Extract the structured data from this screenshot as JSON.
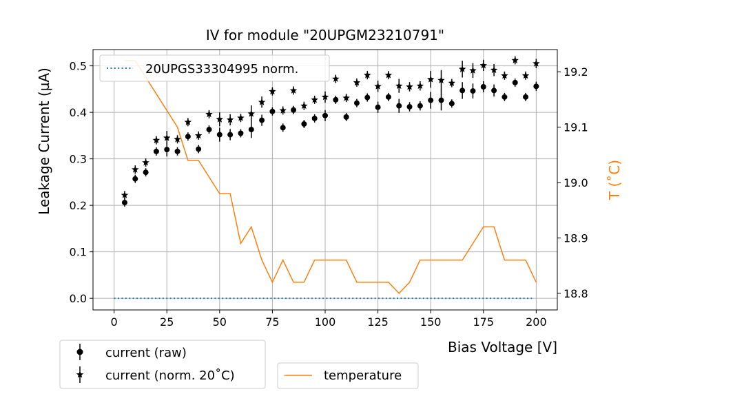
{
  "chart_data": {
    "type": "scatter",
    "title": "IV for module \"20UPGM23210791\"",
    "xlabel": "Bias Voltage [V]",
    "ylabel": "Leakage Current (µA)",
    "y2label": "T (˚C)",
    "xlim": [
      -10,
      210
    ],
    "ylim": [
      -0.025,
      0.535
    ],
    "y2lim": [
      18.77,
      19.24
    ],
    "x_ticks": [
      "0",
      "25",
      "50",
      "75",
      "100",
      "125",
      "150",
      "175",
      "200"
    ],
    "y_ticks": [
      "0.0",
      "0.1",
      "0.2",
      "0.3",
      "0.4",
      "0.5"
    ],
    "y2_ticks": [
      "18.8",
      "18.9",
      "19.0",
      "19.1",
      "19.2"
    ],
    "grid": true,
    "legend_upper": "20UPGS33304995 norm.",
    "legend_left": [
      "current (raw)",
      "current (norm. 20˚C)"
    ],
    "legend_right": "temperature",
    "colors": {
      "current": "#000000",
      "temperature": "#ff7f0e",
      "reference": "#1f77b4"
    },
    "voltages": [
      5,
      10,
      15,
      20,
      25,
      30,
      35,
      40,
      45,
      50,
      55,
      60,
      65,
      70,
      75,
      80,
      85,
      90,
      95,
      100,
      105,
      110,
      115,
      120,
      125,
      130,
      135,
      140,
      145,
      150,
      155,
      160,
      165,
      170,
      175,
      180,
      185,
      190,
      195,
      200
    ],
    "series": [
      {
        "name": "current (raw)",
        "marker": "circle",
        "values": [
          0.206,
          0.257,
          0.271,
          0.316,
          0.32,
          0.316,
          0.348,
          0.321,
          0.363,
          0.352,
          0.352,
          0.355,
          0.363,
          0.383,
          0.402,
          0.367,
          0.405,
          0.375,
          0.387,
          0.393,
          0.427,
          0.39,
          0.42,
          0.432,
          0.411,
          0.433,
          0.414,
          0.412,
          0.414,
          0.426,
          0.426,
          0.419,
          0.447,
          0.446,
          0.455,
          0.447,
          0.433,
          0.464,
          0.433,
          0.456
        ],
        "errors": [
          0,
          0.008,
          0,
          0.006,
          0.015,
          0,
          0,
          0,
          0,
          0.015,
          0.012,
          0.008,
          0.018,
          0.012,
          0,
          0,
          0,
          0,
          0,
          0.012,
          0,
          0,
          0,
          0,
          0.012,
          0,
          0.015,
          0.01,
          0.01,
          0.018,
          0.022,
          0,
          0.018,
          0.016,
          0.012,
          0.013,
          0,
          0,
          0,
          0.01
        ]
      },
      {
        "name": "current (norm. 20˚C)",
        "marker": "star",
        "values": [
          0.222,
          0.277,
          0.292,
          0.34,
          0.345,
          0.342,
          0.379,
          0.35,
          0.396,
          0.385,
          0.384,
          0.388,
          0.397,
          0.422,
          0.445,
          0.404,
          0.447,
          0.414,
          0.427,
          0.433,
          0.472,
          0.431,
          0.464,
          0.48,
          0.456,
          0.48,
          0.457,
          0.455,
          0.457,
          0.471,
          0.469,
          0.463,
          0.493,
          0.49,
          0.501,
          0.491,
          0.479,
          0.512,
          0.479,
          0.505
        ],
        "errors": [
          0,
          0.008,
          0,
          0.006,
          0.015,
          0,
          0,
          0,
          0,
          0.015,
          0.012,
          0.008,
          0.018,
          0.012,
          0,
          0,
          0,
          0,
          0,
          0.012,
          0,
          0,
          0,
          0,
          0.012,
          0,
          0.015,
          0.01,
          0.01,
          0.018,
          0.022,
          0,
          0.018,
          0.016,
          0.012,
          0.013,
          0,
          0,
          0,
          0.01
        ]
      },
      {
        "name": "temperature",
        "axis": "right",
        "x": [
          5,
          10,
          30,
          35,
          40,
          50,
          55,
          60,
          65,
          70,
          75,
          80,
          85,
          90,
          95,
          100,
          110,
          115,
          130,
          135,
          140,
          145,
          165,
          175,
          180,
          185,
          195,
          200
        ],
        "values": [
          19.22,
          19.22,
          19.1,
          19.04,
          19.04,
          18.98,
          18.98,
          18.89,
          18.92,
          18.86,
          18.82,
          18.86,
          18.82,
          18.82,
          18.86,
          18.86,
          18.86,
          18.82,
          18.82,
          18.8,
          18.82,
          18.86,
          18.86,
          18.92,
          18.92,
          18.86,
          18.86,
          18.82
        ]
      },
      {
        "name": "20UPGS33304995 norm.",
        "style": "dotted",
        "x": [
          0,
          198
        ],
        "values": [
          0,
          0
        ]
      }
    ]
  }
}
